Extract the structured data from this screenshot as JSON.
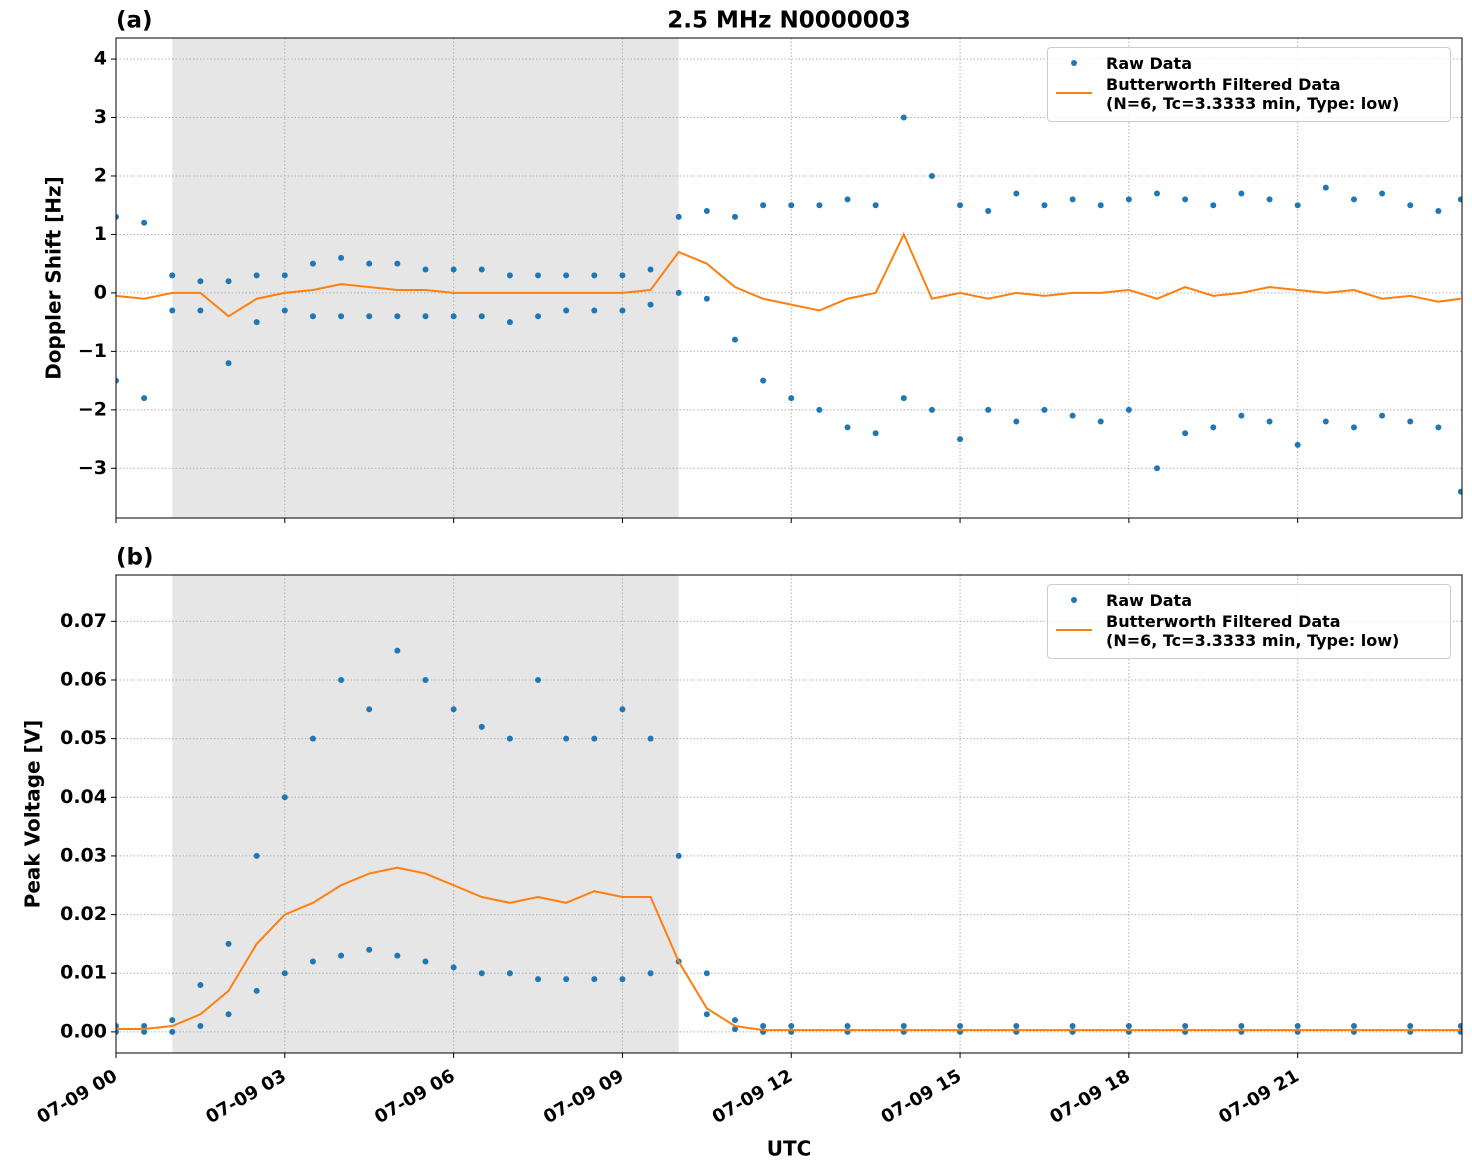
{
  "chart_data": [
    {
      "type": "combo",
      "panel_label": "(a)",
      "title": "2.5 MHz N0000003",
      "ylabel": "Doppler Shift [Hz]",
      "xlim": [
        0,
        23.92
      ],
      "xticks": [
        0,
        3,
        6,
        9,
        12,
        15,
        18,
        21
      ],
      "show_xtick_labels": false,
      "ylim": [
        -3.85,
        4.36
      ],
      "yticks": [
        {
          "value": -3,
          "label": "−3"
        },
        {
          "value": -2,
          "label": "−2"
        },
        {
          "value": -1,
          "label": "−1"
        },
        0,
        1,
        2,
        3,
        4
      ],
      "grid": true,
      "shaded_span": [
        1.0,
        10.0
      ],
      "legend": "upper right",
      "series": [
        {
          "name": "Raw Data",
          "type": "scatter",
          "color": "#1f77b4",
          "x": [
            0,
            0,
            0.5,
            0.5,
            1,
            1,
            1.5,
            1.5,
            2,
            2,
            2.5,
            2.5,
            3,
            3,
            3.5,
            3.5,
            4,
            4,
            4.5,
            4.5,
            5,
            5,
            5.5,
            5.5,
            6,
            6,
            6.5,
            6.5,
            7,
            7,
            7.5,
            7.5,
            8,
            8,
            8.5,
            8.5,
            9,
            9,
            9.5,
            9.5,
            10,
            10,
            10.5,
            10.5,
            11,
            11,
            11.5,
            11.5,
            12,
            12,
            12.5,
            12.5,
            13,
            13,
            13.5,
            13.5,
            14,
            14,
            14.5,
            14.5,
            15,
            15,
            15.5,
            15.5,
            16,
            16,
            16.5,
            16.5,
            17,
            17,
            17.5,
            17.5,
            18,
            18,
            18.5,
            18.5,
            19,
            19,
            19.5,
            19.5,
            20,
            20,
            20.5,
            20.5,
            21,
            21,
            21.5,
            21.5,
            22,
            22,
            22.5,
            22.5,
            23,
            23,
            23.5,
            23.5,
            23.9,
            23.9
          ],
          "values": [
            1.3,
            -1.5,
            1.2,
            -1.8,
            0.3,
            -0.3,
            0.2,
            -0.3,
            0.2,
            -1.2,
            0.3,
            -0.5,
            0.3,
            -0.3,
            0.5,
            -0.4,
            0.6,
            -0.4,
            0.5,
            -0.4,
            0.5,
            -0.4,
            0.4,
            -0.4,
            0.4,
            -0.4,
            0.4,
            -0.4,
            0.3,
            -0.5,
            0.3,
            -0.4,
            0.3,
            -0.3,
            0.3,
            -0.3,
            0.3,
            -0.3,
            0.4,
            -0.2,
            1.3,
            0.0,
            1.4,
            -0.1,
            1.3,
            -0.8,
            1.5,
            -1.5,
            1.5,
            -1.8,
            1.5,
            -2.0,
            1.6,
            -2.3,
            1.5,
            -2.4,
            3.0,
            -1.8,
            2.0,
            -2.0,
            1.5,
            -2.5,
            1.4,
            -2.0,
            1.7,
            -2.2,
            1.5,
            -2.0,
            1.6,
            -2.1,
            1.5,
            -2.2,
            1.6,
            -2.0,
            1.7,
            -3.0,
            1.6,
            -2.4,
            1.5,
            -2.3,
            1.7,
            -2.1,
            1.6,
            -2.2,
            1.5,
            -2.6,
            1.8,
            -2.2,
            1.6,
            -2.3,
            1.7,
            -2.1,
            1.5,
            -2.2,
            1.4,
            -2.3,
            1.6,
            -3.4
          ]
        },
        {
          "name": "Butterworth Filtered Data\n(N=6, Tc=3.3333 min, Type: low)",
          "type": "line",
          "color": "#ff7f0e",
          "x": [
            0,
            0.5,
            1,
            1.5,
            2,
            2.5,
            3,
            3.5,
            4,
            4.5,
            5,
            5.5,
            6,
            6.5,
            7,
            7.5,
            8,
            8.5,
            9,
            9.5,
            10,
            10.5,
            11,
            11.5,
            12,
            12.5,
            13,
            13.5,
            14,
            14.5,
            15,
            15.5,
            16,
            16.5,
            17,
            17.5,
            18,
            18.5,
            19,
            19.5,
            20,
            20.5,
            21,
            21.5,
            22,
            22.5,
            23,
            23.5,
            23.9
          ],
          "values": [
            -0.05,
            -0.1,
            0,
            0,
            -0.4,
            -0.1,
            0,
            0.05,
            0.15,
            0.1,
            0.05,
            0.05,
            0,
            0,
            0,
            0,
            0,
            0,
            0,
            0.05,
            0.7,
            0.5,
            0.1,
            -0.1,
            -0.2,
            -0.3,
            -0.1,
            0,
            1.0,
            -0.1,
            0,
            -0.1,
            0,
            -0.05,
            0,
            0,
            0.05,
            -0.1,
            0.1,
            -0.05,
            0,
            0.1,
            0.05,
            0,
            0.05,
            -0.1,
            -0.05,
            -0.15,
            -0.1
          ]
        }
      ]
    },
    {
      "type": "combo",
      "panel_label": "(b)",
      "ylabel": "Peak Voltage [V]",
      "xlabel": "UTC",
      "xlim": [
        0,
        23.92
      ],
      "xticks": [
        {
          "value": 0,
          "label": "07-09 00"
        },
        {
          "value": 3,
          "label": "07-09 03"
        },
        {
          "value": 6,
          "label": "07-09 06"
        },
        {
          "value": 9,
          "label": "07-09 09"
        },
        {
          "value": 12,
          "label": "07-09 12"
        },
        {
          "value": 15,
          "label": "07-09 15"
        },
        {
          "value": 18,
          "label": "07-09 18"
        },
        {
          "value": 21,
          "label": "07-09 21"
        }
      ],
      "show_xtick_labels": true,
      "ylim": [
        -0.0036,
        0.0779
      ],
      "yticks": [
        {
          "value": 0,
          "label": "0.00"
        },
        0.01,
        0.02,
        0.03,
        0.04,
        0.05,
        0.06,
        0.07
      ],
      "grid": true,
      "shaded_span": [
        1.0,
        10.0
      ],
      "legend": "upper right",
      "series": [
        {
          "name": "Raw Data",
          "type": "scatter",
          "color": "#1f77b4",
          "x": [
            0,
            0,
            0.5,
            0.5,
            1,
            1,
            1.5,
            1.5,
            2,
            2,
            2.5,
            2.5,
            3,
            3,
            3.5,
            3.5,
            4,
            4,
            4.5,
            4.5,
            5,
            5,
            5.5,
            5.5,
            6,
            6,
            6.5,
            6.5,
            7,
            7,
            7.5,
            7.5,
            8,
            8,
            8.5,
            8.5,
            9,
            9,
            9.5,
            9.5,
            10,
            10,
            10.5,
            10.5,
            11,
            11,
            11.5,
            11.5,
            12,
            12,
            13,
            13,
            14,
            14,
            15,
            15,
            16,
            16,
            17,
            17,
            18,
            18,
            19,
            19,
            20,
            20,
            21,
            21,
            22,
            22,
            23,
            23,
            23.9,
            23.9
          ],
          "values": [
            0.001,
            0,
            0.001,
            0,
            0.002,
            0,
            0.008,
            0.001,
            0.015,
            0.003,
            0.03,
            0.007,
            0.04,
            0.01,
            0.05,
            0.012,
            0.06,
            0.013,
            0.055,
            0.014,
            0.065,
            0.013,
            0.06,
            0.012,
            0.055,
            0.011,
            0.052,
            0.01,
            0.05,
            0.01,
            0.06,
            0.009,
            0.05,
            0.009,
            0.05,
            0.009,
            0.055,
            0.009,
            0.05,
            0.01,
            0.03,
            0.012,
            0.01,
            0.003,
            0.002,
            0.0005,
            0.001,
            0,
            0.001,
            0,
            0.001,
            0,
            0.001,
            0,
            0.001,
            0,
            0.001,
            0,
            0.001,
            0,
            0.001,
            0,
            0.001,
            0,
            0.001,
            0,
            0.001,
            0,
            0.001,
            0,
            0.001,
            0,
            0.001,
            0
          ]
        },
        {
          "name": "Butterworth Filtered Data\n(N=6, Tc=3.3333 min, Type: low)",
          "type": "line",
          "color": "#ff7f0e",
          "x": [
            0,
            0.5,
            1,
            1.5,
            2,
            2.5,
            3,
            3.5,
            4,
            4.5,
            5,
            5.5,
            6,
            6.5,
            7,
            7.5,
            8,
            8.5,
            9,
            9.5,
            10,
            10.5,
            11,
            11.5,
            12,
            15,
            18,
            21,
            23.9
          ],
          "values": [
            0.0005,
            0.0005,
            0.001,
            0.003,
            0.007,
            0.015,
            0.02,
            0.022,
            0.025,
            0.027,
            0.028,
            0.027,
            0.025,
            0.023,
            0.022,
            0.023,
            0.022,
            0.024,
            0.023,
            0.023,
            0.012,
            0.004,
            0.001,
            0.0003,
            0.0003,
            0.0003,
            0.0003,
            0.0003,
            0.0003
          ]
        }
      ]
    }
  ]
}
